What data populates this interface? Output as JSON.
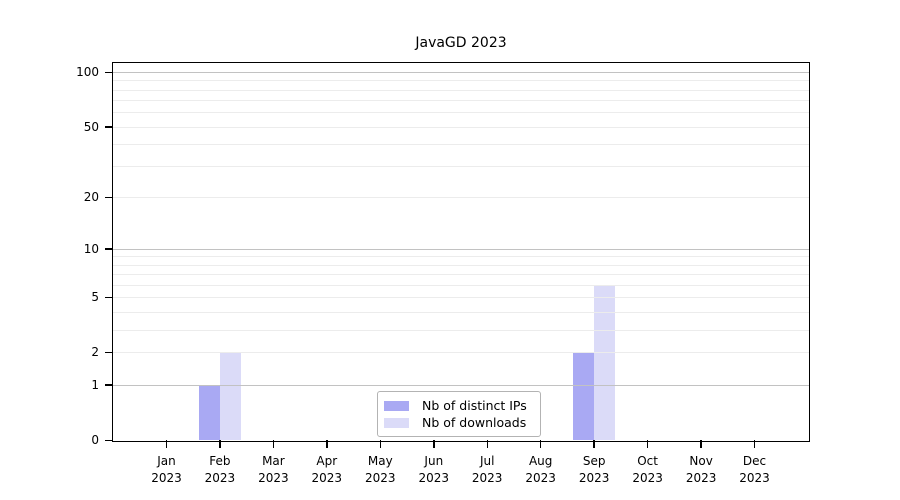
{
  "chart_data": {
    "type": "bar",
    "title": "JavaGD 2023",
    "categories": [
      "Jan",
      "Feb",
      "Mar",
      "Apr",
      "May",
      "Jun",
      "Jul",
      "Aug",
      "Sep",
      "Oct",
      "Nov",
      "Dec"
    ],
    "category_year": "2023",
    "series": [
      {
        "name": "Nb of distinct IPs",
        "color": "#a9a9f3",
        "values": [
          0,
          1,
          0,
          0,
          0,
          0,
          0,
          0,
          2,
          0,
          0,
          0
        ]
      },
      {
        "name": "Nb of downloads",
        "color": "#dbdbf8",
        "values": [
          0,
          2,
          0,
          0,
          0,
          0,
          0,
          0,
          6,
          0,
          0,
          0
        ]
      }
    ],
    "y_axis": {
      "scale": "log1p",
      "range": [
        0,
        100
      ],
      "tick_values": [
        0,
        1,
        2,
        5,
        10,
        20,
        50,
        100
      ],
      "tick_labels": [
        "0",
        "1",
        "2",
        "5",
        "10",
        "20",
        "50",
        "100"
      ],
      "major_gridlines": [
        1,
        10,
        100
      ],
      "minor_gridlines": [
        2,
        3,
        4,
        5,
        6,
        7,
        8,
        9,
        20,
        30,
        40,
        50,
        60,
        70,
        80,
        90
      ]
    },
    "x_axis": {
      "label": "",
      "tick_style": "month-over-year"
    },
    "grid": true,
    "legend_position": "bottom-center-inside",
    "colors": {
      "major_grid": "#c2c2c2",
      "minor_grid": "#ececec",
      "axis": "#000000",
      "background": "#ffffff",
      "text": "#000000",
      "legend_border": "#b3b3b3"
    }
  }
}
